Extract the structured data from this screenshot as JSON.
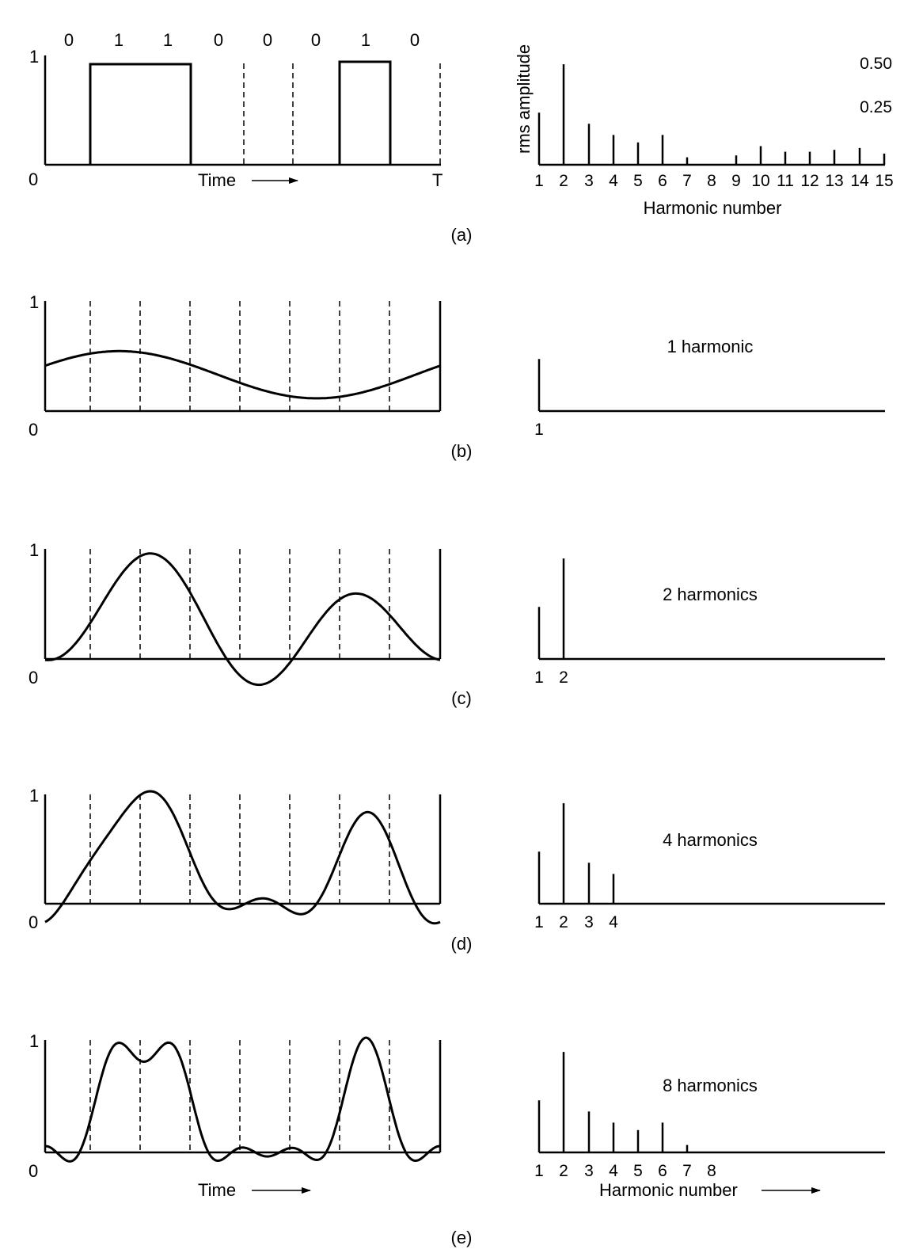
{
  "figure": {
    "panels": [
      {
        "id": "a",
        "caption": "(a)",
        "bits": [
          "0",
          "1",
          "1",
          "0",
          "0",
          "0",
          "1",
          "0"
        ],
        "time_label": "Time",
        "y_label_top": "1",
        "y_label_zero": "0",
        "x_label_end": "T",
        "spectrum_ylabel": "rms amplitude",
        "spectrum_ticks": [
          "0.50",
          "0.25"
        ],
        "spectrum_xlabel": "Harmonic number",
        "harmonic_labels": [
          "1",
          "2",
          "3",
          "4",
          "5",
          "6",
          "7",
          "8",
          "9",
          "10",
          "11",
          "12",
          "13",
          "14",
          "15"
        ]
      },
      {
        "id": "b",
        "caption": "(b)",
        "title": "1 harmonic",
        "y_label_top": "1",
        "y_label_zero": "0",
        "harmonic_labels": [
          "1"
        ]
      },
      {
        "id": "c",
        "caption": "(c)",
        "title": "2 harmonics",
        "y_label_top": "1",
        "y_label_zero": "0",
        "harmonic_labels": [
          "1",
          "2"
        ]
      },
      {
        "id": "d",
        "caption": "(d)",
        "title": "4 harmonics",
        "y_label_top": "1",
        "y_label_zero": "0",
        "harmonic_labels": [
          "1",
          "2",
          "3",
          "4"
        ]
      },
      {
        "id": "e",
        "caption": "(e)",
        "title": "8 harmonics",
        "y_label_top": "1",
        "y_label_zero": "0",
        "time_label": "Time",
        "spectrum_xlabel": "Harmonic number",
        "harmonic_labels": [
          "1",
          "2",
          "3",
          "4",
          "5",
          "6",
          "7",
          "8"
        ]
      }
    ]
  },
  "chart_data": {
    "type": "bar",
    "xlabel": "Harmonic number",
    "ylabel": "rms amplitude",
    "categories": [
      "1",
      "2",
      "3",
      "4",
      "5",
      "6",
      "7",
      "8",
      "9",
      "10",
      "11",
      "12",
      "13",
      "14",
      "15"
    ],
    "values": [
      0.28,
      0.54,
      0.22,
      0.16,
      0.12,
      0.16,
      0.04,
      0.0,
      0.05,
      0.1,
      0.07,
      0.07,
      0.08,
      0.09,
      0.06
    ],
    "ylim": [
      0,
      0.6
    ]
  }
}
